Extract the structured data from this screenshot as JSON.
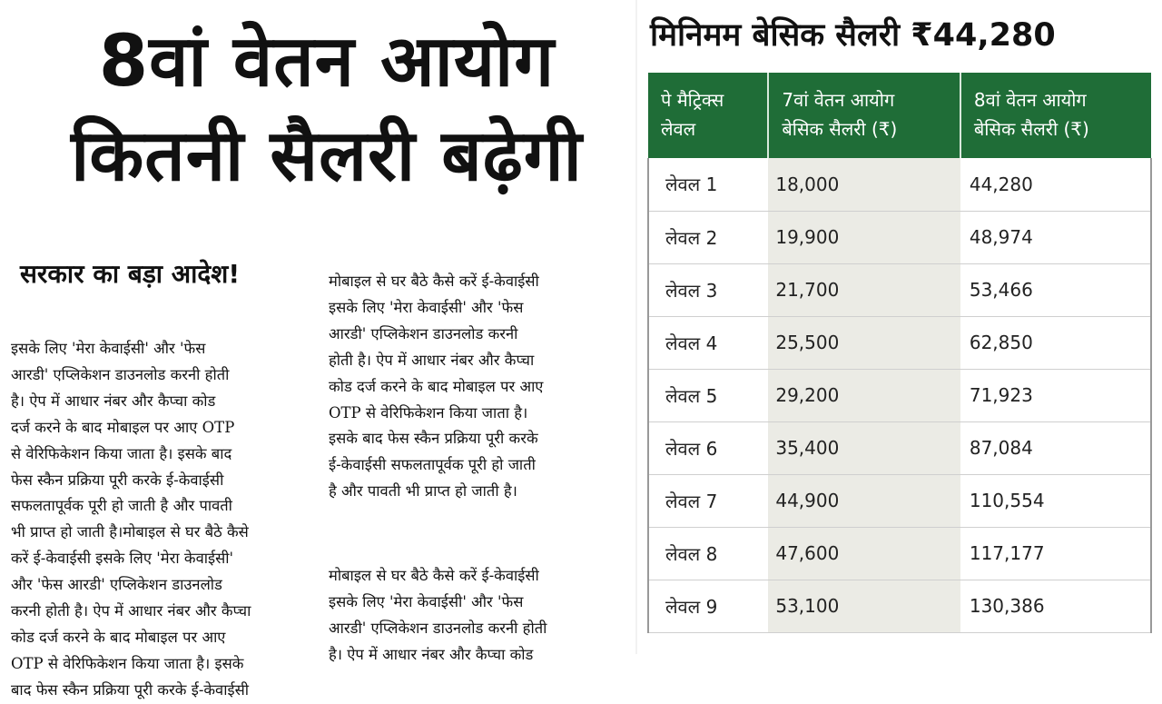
{
  "headline": {
    "line1": "8वां वेतन आयोग",
    "line2": "कितनी सैलरी बढ़ेगी"
  },
  "subheading": "सरकार का बड़ा आदेश!",
  "column1": [
    "इसके लिए 'मेरा केवाईसी' और 'फेस",
    "आरडी' एप्लिकेशन डाउनलोड करनी होती",
    "है। ऐप में आधार नंबर और कैप्चा कोड",
    "दर्ज करने के बाद मोबाइल पर आए OTP",
    "से वेरिफिकेशन किया जाता है। इसके बाद",
    "फेस स्कैन प्रक्रिया पूरी करके ई-केवाईसी",
    "सफलतापूर्वक पूरी हो जाती है और पावती",
    "भी प्राप्त हो जाती है।मोबाइल से घर बैठे कैसे",
    "करें ई-केवाईसी इसके लिए 'मेरा केवाईसी'",
    "और 'फेस आरडी' एप्लिकेशन डाउनलोड",
    "करनी होती है। ऐप में आधार नंबर और कैप्चा",
    "कोड दर्ज करने के बाद मोबाइल पर आए",
    "OTP से वेरिफिकेशन किया जाता है। इसके",
    "बाद फेस स्कैन प्रक्रिया पूरी करके ई-केवाईसी"
  ],
  "column2": [
    "मोबाइल से घर बैठे कैसे करें ई-केवाईसी",
    "इसके लिए 'मेरा केवाईसी' और 'फेस",
    "आरडी' एप्लिकेशन डाउनलोड करनी",
    "होती है। ऐप में आधार नंबर और कैप्चा",
    "कोड दर्ज करने के बाद मोबाइल पर आए",
    "OTP से वेरिफिकेशन किया जाता है।",
    "इसके बाद फेस स्कैन प्रक्रिया पूरी करके",
    "ई-केवाईसी सफलतापूर्वक पूरी हो जाती",
    "है और पावती भी प्राप्त हो जाती है।"
  ],
  "column3": [
    "मोबाइल से घर बैठे कैसे करें ई-केवाईसी",
    "इसके लिए 'मेरा केवाईसी' और 'फेस",
    "आरडी' एप्लिकेशन डाउनलोड करनी होती",
    "है। ऐप में आधार नंबर और कैप्चा कोड"
  ],
  "table_title": "मिनिमम बेसिक सैलरी ₹44,280",
  "table": {
    "headers": [
      "पे मैट्रिक्स\nलेवल",
      "7वां वेतन आयोग\nबेसिक सैलरी (₹)",
      "8वां वेतन आयोग\nबेसिक सैलरी (₹)"
    ],
    "rows": [
      [
        "लेवल 1",
        "18,000",
        "44,280"
      ],
      [
        "लेवल 2",
        "19,900",
        "48,974"
      ],
      [
        "लेवल 3",
        "21,700",
        "53,466"
      ],
      [
        "लेवल 4",
        "25,500",
        "62,850"
      ],
      [
        "लेवल 5",
        "29,200",
        "71,923"
      ],
      [
        "लेवल 6",
        "35,400",
        "87,084"
      ],
      [
        "लेवल 7",
        "44,900",
        "110,554"
      ],
      [
        "लेवल 8",
        "47,600",
        "117,177"
      ],
      [
        "लेवल 9",
        "53,100",
        "130,386"
      ]
    ]
  },
  "colors": {
    "header_green": "#1f6d37",
    "mid_column": "#ebebe5"
  }
}
